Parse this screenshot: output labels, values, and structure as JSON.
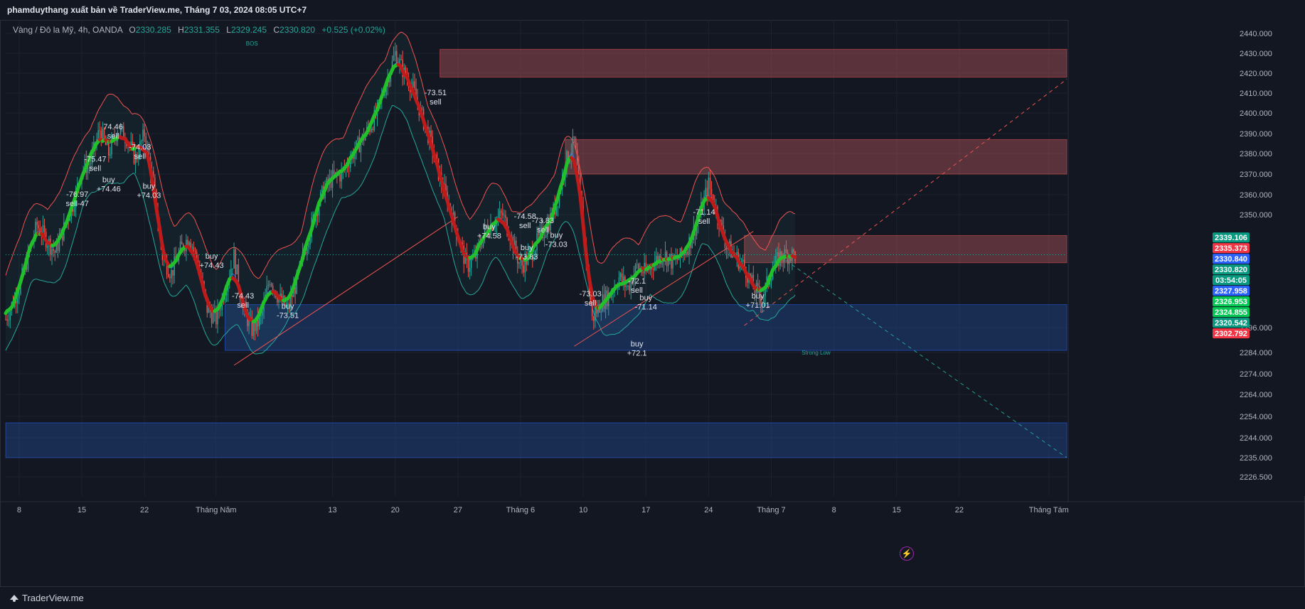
{
  "header": {
    "publisher": "phamduythang xuất bản về TraderView.me, Tháng 7 03, 2024 08:05 UTC+7"
  },
  "legend": {
    "symbol": "Vàng / Đô la Mỹ, 4h, OANDA",
    "open_key": "O",
    "open": "2330.285",
    "high_key": "H",
    "high": "2331.355",
    "low_key": "L",
    "low": "2329.245",
    "close_key": "C",
    "close": "2330.820",
    "change": "+0.525 (+0.02%)"
  },
  "footer": {
    "brand": "TraderView.me"
  },
  "colors": {
    "background": "#131722",
    "up": "#26a69a",
    "down": "#ef5350",
    "supertrend_up": "#22c02b",
    "supertrend_down": "#c01b1b",
    "supply_zone": "#b2555a",
    "demand_zone": "#1f3f7a",
    "band": "#ef5350",
    "band_lower": "#26a69a"
  },
  "chart_data": {
    "type": "candlestick",
    "symbol": "XAUUSD",
    "interval": "4h",
    "ylim": [
      2226.5,
      2440.0
    ],
    "y_ticks": [
      "2440.000",
      "2430.000",
      "2420.000",
      "2410.000",
      "2400.000",
      "2390.000",
      "2380.000",
      "2370.000",
      "2360.000",
      "2350.000",
      "2296.000",
      "2284.000",
      "2274.000",
      "2264.000",
      "2254.000",
      "2244.000",
      "2235.000",
      "2226.500"
    ],
    "x_ticks": [
      {
        "label": "8",
        "day": 0
      },
      {
        "label": "15",
        "day": 7
      },
      {
        "label": "22",
        "day": 14
      },
      {
        "label": "Tháng Năm",
        "day": 22
      },
      {
        "label": "13",
        "day": 35
      },
      {
        "label": "20",
        "day": 42
      },
      {
        "label": "27",
        "day": 49
      },
      {
        "label": "Tháng 6",
        "day": 56
      },
      {
        "label": "10",
        "day": 63
      },
      {
        "label": "17",
        "day": 70
      },
      {
        "label": "24",
        "day": 77
      },
      {
        "label": "Tháng 7",
        "day": 84
      },
      {
        "label": "8",
        "day": 91
      },
      {
        "label": "15",
        "day": 98
      },
      {
        "label": "22",
        "day": 105
      },
      {
        "label": "Tháng Tám",
        "day": 115
      }
    ],
    "price_path": [
      [
        -1.5,
        2300
      ],
      [
        0,
        2315
      ],
      [
        2,
        2345
      ],
      [
        4,
        2332
      ],
      [
        6,
        2355
      ],
      [
        7,
        2372
      ],
      [
        8,
        2376
      ],
      [
        9,
        2392
      ],
      [
        10,
        2380
      ],
      [
        11,
        2392
      ],
      [
        12,
        2388
      ],
      [
        13,
        2377
      ],
      [
        14,
        2390
      ],
      [
        15,
        2365
      ],
      [
        16,
        2330
      ],
      [
        17,
        2322
      ],
      [
        18,
        2333
      ],
      [
        19,
        2340
      ],
      [
        20,
        2326
      ],
      [
        21,
        2305
      ],
      [
        22,
        2300
      ],
      [
        23,
        2315
      ],
      [
        24,
        2330
      ],
      [
        25,
        2305
      ],
      [
        26,
        2295
      ],
      [
        27,
        2300
      ],
      [
        28,
        2320
      ],
      [
        29,
        2310
      ],
      [
        30,
        2305
      ],
      [
        31,
        2318
      ],
      [
        32,
        2335
      ],
      [
        33,
        2350
      ],
      [
        34,
        2362
      ],
      [
        35,
        2368
      ],
      [
        36,
        2370
      ],
      [
        37,
        2378
      ],
      [
        38,
        2385
      ],
      [
        39,
        2392
      ],
      [
        40,
        2400
      ],
      [
        41,
        2415
      ],
      [
        42,
        2430
      ],
      [
        43,
        2420
      ],
      [
        44,
        2412
      ],
      [
        45,
        2398
      ],
      [
        46,
        2385
      ],
      [
        47,
        2368
      ],
      [
        48,
        2355
      ],
      [
        49,
        2340
      ],
      [
        50,
        2325
      ],
      [
        51,
        2330
      ],
      [
        52,
        2342
      ],
      [
        53,
        2347
      ],
      [
        54,
        2350
      ],
      [
        55,
        2338
      ],
      [
        56,
        2325
      ],
      [
        57,
        2330
      ],
      [
        58,
        2338
      ],
      [
        59,
        2345
      ],
      [
        60,
        2355
      ],
      [
        61,
        2375
      ],
      [
        62,
        2386
      ],
      [
        63,
        2345
      ],
      [
        64,
        2300
      ],
      [
        65,
        2308
      ],
      [
        66,
        2312
      ],
      [
        67,
        2320
      ],
      [
        68,
        2315
      ],
      [
        69,
        2325
      ],
      [
        70,
        2322
      ],
      [
        71,
        2328
      ],
      [
        72,
        2331
      ],
      [
        73,
        2327
      ],
      [
        74,
        2330
      ],
      [
        75,
        2338
      ],
      [
        76,
        2350
      ],
      [
        77,
        2365
      ],
      [
        78,
        2350
      ],
      [
        79,
        2335
      ],
      [
        80,
        2330
      ],
      [
        81,
        2325
      ],
      [
        82,
        2315
      ],
      [
        83,
        2310
      ],
      [
        84,
        2323
      ],
      [
        85,
        2330
      ],
      [
        86,
        2331
      ],
      [
        86.8,
        2330.82
      ]
    ],
    "price_labels": [
      {
        "text": "2339.106",
        "price": 2339.106,
        "bg": "#089981"
      },
      {
        "text": "2335.373",
        "price": 2335.373,
        "bg": "#f23645"
      },
      {
        "text": "2330.840",
        "price": 2330.84,
        "bg": "#2962ff"
      },
      {
        "text": "2330.820",
        "price": 2330.82,
        "bg": "#089981"
      },
      {
        "text": "03:54:05",
        "price": 2328.6,
        "bg": "#089981"
      },
      {
        "text": "2327.958",
        "price": 2327.958,
        "bg": "#2962ff"
      },
      {
        "text": "2326.953",
        "price": 2326.953,
        "bg": "#00c853"
      },
      {
        "text": "2324.855",
        "price": 2324.855,
        "bg": "#00c853"
      },
      {
        "text": "2320.542",
        "price": 2320.542,
        "bg": "#089981"
      },
      {
        "text": "2302.792",
        "price": 2302.792,
        "bg": "#f23645"
      }
    ],
    "zones": [
      {
        "kind": "supply",
        "day_start": 47,
        "y1": 2432,
        "y2": 2418
      },
      {
        "kind": "supply",
        "day_start": 61,
        "y1": 2387,
        "y2": 2370
      },
      {
        "kind": "supply",
        "day_start": 81,
        "y1": 2340,
        "y2": 2327
      },
      {
        "kind": "demand",
        "day_start": 23,
        "y1": 2307,
        "y2": 2285
      },
      {
        "kind": "demand",
        "day_start": -1.5,
        "y1": 2251,
        "y2": 2235
      }
    ],
    "trend_lines": [
      {
        "d1": 81,
        "p1": 2297,
        "d2": 117,
        "p2": 2417,
        "color": "#ef5350",
        "dashed": true
      },
      {
        "d1": 85,
        "p1": 2330,
        "d2": 117,
        "p2": 2235,
        "color": "#26a69a",
        "dashed": true
      },
      {
        "d1": 24,
        "p1": 2278,
        "d2": 49,
        "p2": 2349,
        "color": "#ef5350",
        "dashed": false
      },
      {
        "d1": 62,
        "p1": 2287,
        "d2": 82,
        "p2": 2342,
        "color": "#ef5350",
        "dashed": false
      }
    ],
    "annotations": [
      {
        "text": "BOS",
        "day": 26,
        "price": 2434,
        "color": "#26a69a"
      },
      {
        "text": "Strong Low",
        "day": 89,
        "price": 2283,
        "color": "#26a69a"
      }
    ],
    "signals": [
      {
        "day": 8.5,
        "price": 2376,
        "lines": [
          "-75.47",
          "sell"
        ]
      },
      {
        "day": 10.5,
        "price": 2392,
        "lines": [
          "74.46",
          "sell"
        ]
      },
      {
        "day": 13.5,
        "price": 2382,
        "lines": [
          "-74.03",
          "sell"
        ]
      },
      {
        "day": 10,
        "price": 2366,
        "lines": [
          "buy",
          "+74.46"
        ]
      },
      {
        "day": 14.5,
        "price": 2363,
        "lines": [
          "buy",
          "+74.03"
        ]
      },
      {
        "day": 6.5,
        "price": 2359,
        "lines": [
          "-76.97",
          "sell-47"
        ]
      },
      {
        "day": 21.5,
        "price": 2329,
        "lines": [
          "buy",
          "+74.43"
        ]
      },
      {
        "day": 25,
        "price": 2310,
        "lines": [
          "-74.43",
          "sell"
        ]
      },
      {
        "day": 30,
        "price": 2305,
        "lines": [
          "buy",
          "-73.51"
        ]
      },
      {
        "day": 46.5,
        "price": 2409,
        "lines": [
          "-73.51",
          "sell"
        ]
      },
      {
        "day": 52.5,
        "price": 2343,
        "lines": [
          "buy",
          "+74.58"
        ]
      },
      {
        "day": 56.5,
        "price": 2348,
        "lines": [
          "-74.58",
          "sell"
        ]
      },
      {
        "day": 58.5,
        "price": 2346,
        "lines": [
          "-73.83",
          "sell"
        ]
      },
      {
        "day": 56.7,
        "price": 2333,
        "lines": [
          "buy",
          "-73.83"
        ]
      },
      {
        "day": 60,
        "price": 2339,
        "lines": [
          "buy",
          "-73.03"
        ]
      },
      {
        "day": 63.8,
        "price": 2311,
        "lines": [
          "-73.03",
          "sell"
        ]
      },
      {
        "day": 69,
        "price": 2317,
        "lines": [
          "-72.1",
          "sell"
        ]
      },
      {
        "day": 70,
        "price": 2309,
        "lines": [
          "buy",
          "-71.14"
        ]
      },
      {
        "day": 76.5,
        "price": 2350,
        "lines": [
          "-71.14",
          "sell"
        ]
      },
      {
        "day": 82.5,
        "price": 2310,
        "lines": [
          "buy",
          "+71.01"
        ]
      },
      {
        "day": 69,
        "price": 2287,
        "lines": [
          "buy",
          "+72.1"
        ]
      }
    ]
  }
}
